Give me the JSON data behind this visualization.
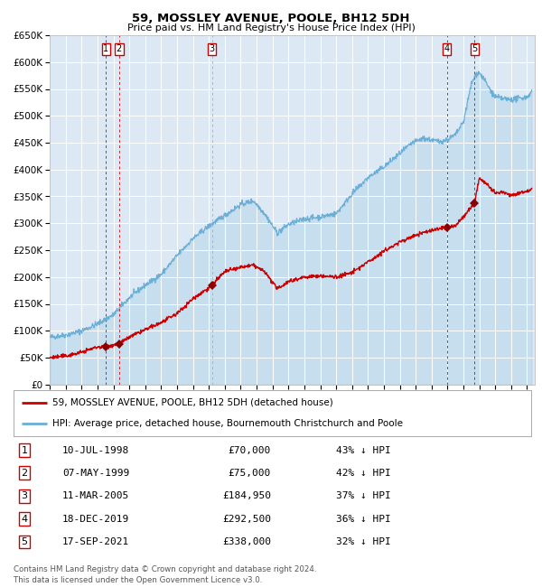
{
  "title": "59, MOSSLEY AVENUE, POOLE, BH12 5DH",
  "subtitle": "Price paid vs. HM Land Registry's House Price Index (HPI)",
  "background_color": "#dce9f5",
  "plot_bg_color": "#dce9f5",
  "grid_color": "#ffffff",
  "hpi_color": "#6baed6",
  "price_color": "#cc0000",
  "sale_marker_color": "#880000",
  "ylim": [
    0,
    650000
  ],
  "yticks": [
    0,
    50000,
    100000,
    150000,
    200000,
    250000,
    300000,
    350000,
    400000,
    450000,
    500000,
    550000,
    600000,
    650000
  ],
  "ytick_labels": [
    "£0",
    "£50K",
    "£100K",
    "£150K",
    "£200K",
    "£250K",
    "£300K",
    "£350K",
    "£400K",
    "£450K",
    "£500K",
    "£550K",
    "£600K",
    "£650K"
  ],
  "xlim_start": 1995.0,
  "xlim_end": 2025.5,
  "xticks": [
    1995,
    1996,
    1997,
    1998,
    1999,
    2000,
    2001,
    2002,
    2003,
    2004,
    2005,
    2006,
    2007,
    2008,
    2009,
    2010,
    2011,
    2012,
    2013,
    2014,
    2015,
    2016,
    2017,
    2018,
    2019,
    2020,
    2021,
    2022,
    2023,
    2024,
    2025
  ],
  "sales": [
    {
      "num": 1,
      "date": "10-JUL-1998",
      "year": 1998.53,
      "price": 70000,
      "pct": "43%",
      "dir": "↓"
    },
    {
      "num": 2,
      "date": "07-MAY-1999",
      "year": 1999.35,
      "price": 75000,
      "pct": "42%",
      "dir": "↓"
    },
    {
      "num": 3,
      "date": "11-MAR-2005",
      "year": 2005.19,
      "price": 184950,
      "pct": "37%",
      "dir": "↓"
    },
    {
      "num": 4,
      "date": "18-DEC-2019",
      "year": 2019.96,
      "price": 292500,
      "pct": "36%",
      "dir": "↓"
    },
    {
      "num": 5,
      "date": "17-SEP-2021",
      "year": 2021.71,
      "price": 338000,
      "pct": "32%",
      "dir": "↓"
    }
  ],
  "legend_line1": "59, MOSSLEY AVENUE, POOLE, BH12 5DH (detached house)",
  "legend_line2": "HPI: Average price, detached house, Bournemouth Christchurch and Poole",
  "footnote": "Contains HM Land Registry data © Crown copyright and database right 2024.\nThis data is licensed under the Open Government Licence v3.0.",
  "hpi_anchors_x": [
    1995.0,
    1996.0,
    1997.0,
    1998.0,
    1999.0,
    2000.0,
    2001.0,
    2002.0,
    2003.0,
    2004.0,
    2005.0,
    2006.0,
    2007.0,
    2007.8,
    2008.5,
    2009.3,
    2010.0,
    2011.0,
    2012.0,
    2013.0,
    2014.0,
    2015.0,
    2016.0,
    2017.0,
    2017.8,
    2018.5,
    2019.0,
    2019.5,
    2020.0,
    2020.5,
    2021.0,
    2021.5,
    2021.8,
    2022.0,
    2022.3,
    2022.7,
    2023.0,
    2023.5,
    2024.0,
    2025.0,
    2025.3
  ],
  "hpi_anchors_y": [
    88000,
    92000,
    100000,
    113000,
    130000,
    162000,
    185000,
    205000,
    240000,
    272000,
    295000,
    315000,
    335000,
    342000,
    318000,
    282000,
    298000,
    308000,
    312000,
    318000,
    355000,
    385000,
    405000,
    430000,
    450000,
    458000,
    455000,
    452000,
    456000,
    465000,
    488000,
    560000,
    578000,
    580000,
    568000,
    548000,
    535000,
    532000,
    530000,
    535000,
    545000
  ],
  "price_anchors_x": [
    1995.0,
    1996.0,
    1997.0,
    1998.0,
    1998.53,
    1999.0,
    1999.35,
    2000.0,
    2001.0,
    2002.0,
    2003.0,
    2004.0,
    2005.0,
    2005.19,
    2006.0,
    2007.0,
    2007.8,
    2008.5,
    2009.3,
    2010.0,
    2011.0,
    2012.0,
    2013.0,
    2014.0,
    2015.0,
    2016.0,
    2017.0,
    2018.0,
    2019.0,
    2019.96,
    2020.5,
    2021.0,
    2021.71,
    2022.0,
    2022.5,
    2023.0,
    2023.5,
    2024.0,
    2025.0,
    2025.3
  ],
  "price_anchors_y": [
    50000,
    53000,
    60000,
    70000,
    70000,
    74000,
    75000,
    88000,
    102000,
    115000,
    132000,
    160000,
    180000,
    184950,
    210000,
    218000,
    222000,
    210000,
    178000,
    192000,
    200000,
    202000,
    200000,
    208000,
    228000,
    248000,
    265000,
    278000,
    287000,
    292500,
    295000,
    312000,
    338000,
    385000,
    372000,
    355000,
    358000,
    352000,
    360000,
    365000
  ]
}
